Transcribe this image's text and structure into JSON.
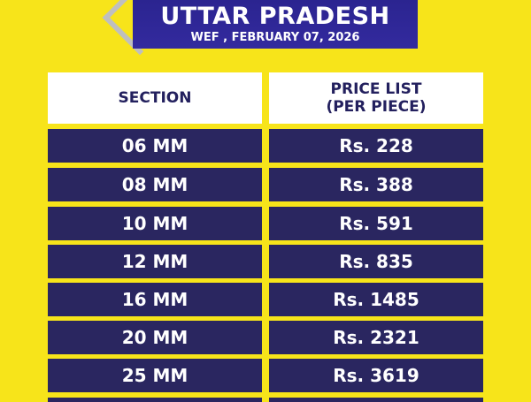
{
  "banner": {
    "title": "UTTAR PRADESH",
    "date": "WEF , FEBRUARY 07, 2026"
  },
  "table": {
    "headers": [
      "SECTION",
      "PRICE LIST\n(PER PIECE)"
    ],
    "rows": [
      {
        "section": "06 MM",
        "price": "Rs. 228"
      },
      {
        "section": "08 MM",
        "price": "Rs. 388"
      },
      {
        "section": "10 MM",
        "price": "Rs. 591"
      },
      {
        "section": "12 MM",
        "price": "Rs. 835"
      },
      {
        "section": "16 MM",
        "price": "Rs. 1485"
      },
      {
        "section": "20 MM",
        "price": "Rs. 2321"
      },
      {
        "section": "25 MM",
        "price": "Rs. 3619"
      }
    ]
  },
  "colors": {
    "background": "#f7e41a",
    "navy": "#2a2660",
    "banner": "#2b2490"
  }
}
